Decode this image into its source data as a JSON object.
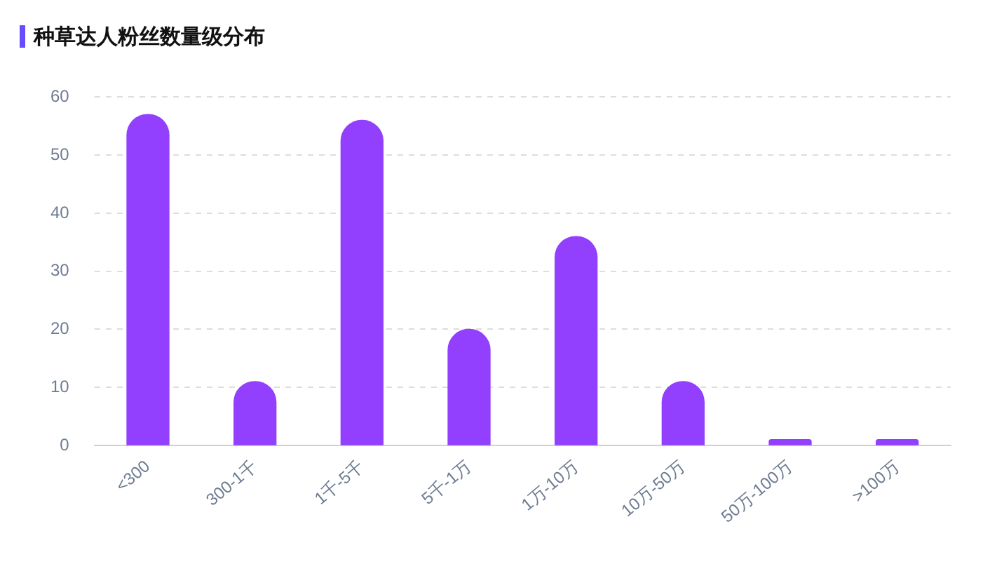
{
  "chart_data": {
    "type": "bar",
    "title": "种草达人粉丝数量级分布",
    "categories": [
      "<300",
      "300-1千",
      "1千-5千",
      "5千-1万",
      "1万-10万",
      "10万-50万",
      "50万-100万",
      ">100万"
    ],
    "values": [
      57,
      11,
      56,
      20,
      36,
      11,
      1,
      1
    ],
    "color": "#9340fe",
    "ylim": [
      0,
      60
    ],
    "yticks": [
      0,
      10,
      20,
      30,
      40,
      50,
      60
    ],
    "grid": "y"
  }
}
